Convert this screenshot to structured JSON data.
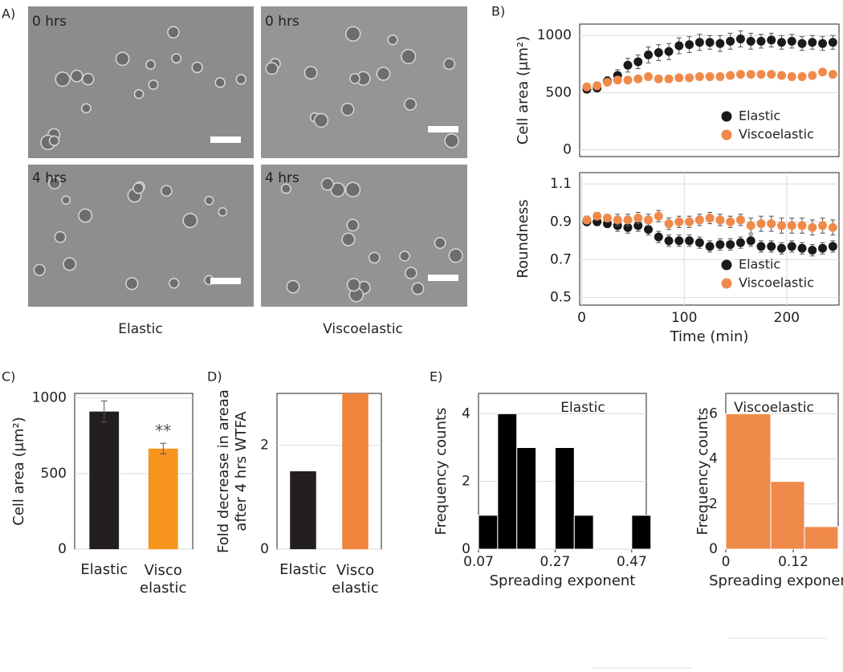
{
  "figure": {
    "panel_labels": [
      "A)",
      "B)",
      "C)",
      "D)",
      "E)"
    ],
    "image_labels": [
      "0 hrs",
      "0 hrs",
      "4 hrs",
      "4 hrs"
    ],
    "captions": [
      "Elastic",
      "Viscoelastic"
    ]
  },
  "chart_data": [
    {
      "type": "scatter",
      "ylabel": "Cell area (μm²)",
      "x": [
        5,
        15,
        25,
        35,
        45,
        55,
        65,
        75,
        85,
        95,
        105,
        115,
        125,
        135,
        145,
        155,
        165,
        175,
        185,
        195,
        205,
        215,
        225,
        235,
        245
      ],
      "xlim": [
        -2,
        251
      ],
      "ylim": [
        -60,
        1100
      ],
      "yticks": [
        0,
        500,
        1000
      ],
      "grid": true,
      "legend": "lower right",
      "series": [
        {
          "name": "Elastic",
          "color": "#1a1a1a",
          "values": [
            530,
            540,
            600,
            650,
            740,
            770,
            830,
            850,
            860,
            910,
            920,
            940,
            940,
            930,
            950,
            970,
            950,
            950,
            960,
            940,
            950,
            930,
            940,
            930,
            940
          ],
          "errors": [
            30,
            30,
            40,
            50,
            60,
            60,
            70,
            70,
            70,
            70,
            70,
            70,
            60,
            70,
            70,
            70,
            70,
            60,
            60,
            60,
            60,
            60,
            60,
            60,
            60
          ]
        },
        {
          "name": "Viscoelastic",
          "color": "#f08a4b",
          "values": [
            550,
            560,
            590,
            610,
            610,
            620,
            640,
            620,
            620,
            630,
            630,
            640,
            640,
            640,
            650,
            660,
            660,
            660,
            660,
            650,
            640,
            640,
            650,
            680,
            660
          ],
          "errors": [
            20,
            20,
            25,
            25,
            25,
            25,
            25,
            25,
            25,
            25,
            25,
            25,
            25,
            25,
            25,
            25,
            25,
            25,
            25,
            25,
            25,
            25,
            25,
            25,
            25
          ]
        }
      ]
    },
    {
      "type": "scatter",
      "ylabel": "Roundness",
      "xlabel": "Time (min)",
      "x": [
        5,
        15,
        25,
        35,
        45,
        55,
        65,
        75,
        85,
        95,
        105,
        115,
        125,
        135,
        145,
        155,
        165,
        175,
        185,
        195,
        205,
        215,
        225,
        235,
        245
      ],
      "xlim": [
        -2,
        251
      ],
      "xticks": [
        0,
        100,
        200
      ],
      "ylim": [
        0.46,
        1.16
      ],
      "yticks": [
        0.5,
        0.7,
        0.9,
        1.1
      ],
      "grid": true,
      "legend": "lower right",
      "series": [
        {
          "name": "Elastic",
          "color": "#1a1a1a",
          "values": [
            0.9,
            0.9,
            0.89,
            0.88,
            0.87,
            0.88,
            0.86,
            0.82,
            0.8,
            0.8,
            0.8,
            0.79,
            0.77,
            0.78,
            0.78,
            0.79,
            0.8,
            0.77,
            0.77,
            0.76,
            0.77,
            0.76,
            0.75,
            0.76,
            0.77
          ],
          "errors": [
            0.02,
            0.02,
            0.02,
            0.03,
            0.03,
            0.03,
            0.03,
            0.03,
            0.03,
            0.03,
            0.03,
            0.03,
            0.03,
            0.03,
            0.03,
            0.03,
            0.03,
            0.03,
            0.03,
            0.03,
            0.03,
            0.03,
            0.03,
            0.03,
            0.03
          ]
        },
        {
          "name": "Viscoelastic",
          "color": "#f08a4b",
          "values": [
            0.91,
            0.93,
            0.92,
            0.91,
            0.91,
            0.92,
            0.91,
            0.93,
            0.89,
            0.9,
            0.9,
            0.91,
            0.92,
            0.91,
            0.9,
            0.91,
            0.88,
            0.89,
            0.89,
            0.88,
            0.88,
            0.88,
            0.87,
            0.88,
            0.87
          ],
          "errors": [
            0.02,
            0.02,
            0.02,
            0.03,
            0.03,
            0.03,
            0.03,
            0.03,
            0.03,
            0.03,
            0.03,
            0.03,
            0.03,
            0.03,
            0.03,
            0.03,
            0.04,
            0.04,
            0.04,
            0.04,
            0.04,
            0.04,
            0.04,
            0.04,
            0.04
          ]
        }
      ]
    },
    {
      "type": "bar",
      "ylabel": "Cell area (μm²)",
      "categories": [
        "Elastic",
        "Visco\nelastic"
      ],
      "values": [
        910,
        665
      ],
      "errors": [
        70,
        35
      ],
      "colors": [
        "#231f20",
        "#f7941d"
      ],
      "annotation": "**",
      "ylim": [
        0,
        1030
      ],
      "yticks": [
        0,
        500,
        1000
      ],
      "grid": true
    },
    {
      "type": "bar",
      "ylabel": "Fold decrease in areaa\nafter 4 hrs WTFA",
      "categories": [
        "Elastic",
        "Visco\nelastic"
      ],
      "values": [
        1.5,
        3.0
      ],
      "colors": [
        "#231f20",
        "#f0843c"
      ],
      "ylim": [
        0,
        3
      ],
      "yticks": [
        0,
        2
      ],
      "grid": true
    },
    {
      "type": "histogram",
      "title": "Elastic",
      "ylabel": "Frequency counts",
      "xlabel": "Spreading exponent",
      "bins": [
        0.07,
        0.12,
        0.17,
        0.22,
        0.27,
        0.32,
        0.37,
        0.42,
        0.47,
        0.52
      ],
      "counts": [
        1,
        4,
        3,
        0,
        3,
        1,
        0,
        0,
        1
      ],
      "color": "#000000",
      "xlim": [
        0.07,
        0.508
      ],
      "xticks": [
        0.07,
        0.27,
        0.47
      ],
      "ylim": [
        0,
        4.6
      ],
      "yticks": [
        0,
        2,
        4
      ],
      "grid": true
    },
    {
      "type": "histogram",
      "title": "Viscoelastic",
      "ylabel": "Frequency counts",
      "xlabel": "Spreading exponent",
      "bins": [
        0,
        0.08,
        0.14,
        0.2
      ],
      "counts": [
        6,
        3,
        1
      ],
      "color": "#f08a4b",
      "xlim": [
        0,
        0.2
      ],
      "xticks": [
        0,
        0.12
      ],
      "ylim": [
        0,
        6.9
      ],
      "yticks": [
        0,
        2,
        4,
        6
      ],
      "grid": true
    }
  ]
}
